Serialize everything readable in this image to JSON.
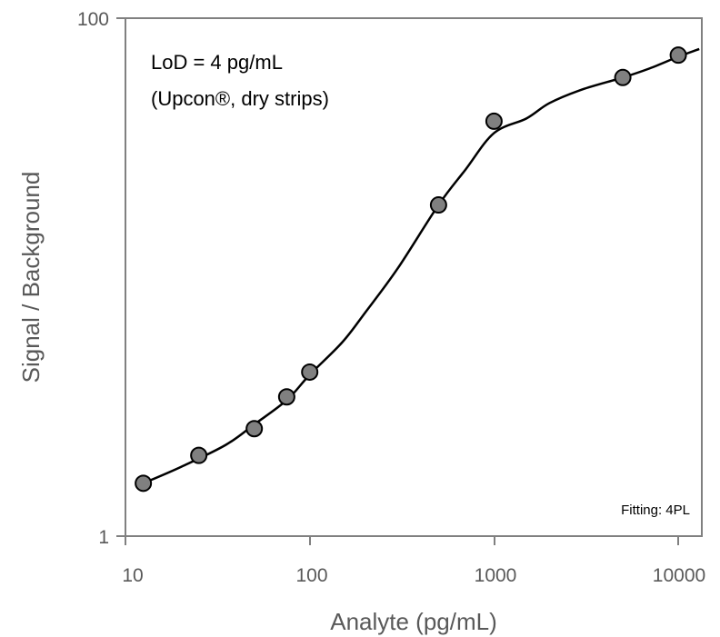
{
  "chart_data": {
    "type": "scatter",
    "xlabel": "Analyte (pg/mL)",
    "ylabel": "Signal / Background",
    "x_scale": "log",
    "y_scale": "log",
    "xlim": [
      10,
      13000
    ],
    "ylim": [
      1,
      100
    ],
    "x_ticks": [
      "10",
      "100",
      "1000",
      "10000"
    ],
    "y_ticks": [
      "1",
      "100"
    ],
    "grid": false,
    "annotations": {
      "lod_line": "LoD = 4 pg/mL",
      "method_line": "(Upcon®, dry strips)",
      "fitting": "Fitting: 4PL"
    },
    "series": [
      {
        "marker_color": "#808080",
        "points": [
          {
            "x": 12.5,
            "y": 1.6
          },
          {
            "x": 25,
            "y": 2.05
          },
          {
            "x": 50,
            "y": 2.6
          },
          {
            "x": 75,
            "y": 3.45
          },
          {
            "x": 100,
            "y": 4.3
          },
          {
            "x": 500,
            "y": 19
          },
          {
            "x": 1000,
            "y": 40
          },
          {
            "x": 5000,
            "y": 59
          },
          {
            "x": 10000,
            "y": 72
          }
        ]
      }
    ],
    "fit_curve": {
      "model": "4PL",
      "color": "#000000",
      "points": [
        {
          "x": 12.5,
          "y": 1.6
        },
        {
          "x": 20,
          "y": 1.85
        },
        {
          "x": 35,
          "y": 2.25
        },
        {
          "x": 50,
          "y": 2.7
        },
        {
          "x": 75,
          "y": 3.35
        },
        {
          "x": 100,
          "y": 4.2
        },
        {
          "x": 150,
          "y": 5.6
        },
        {
          "x": 200,
          "y": 7.3
        },
        {
          "x": 300,
          "y": 10.8
        },
        {
          "x": 500,
          "y": 19
        },
        {
          "x": 700,
          "y": 26
        },
        {
          "x": 1000,
          "y": 36
        },
        {
          "x": 1500,
          "y": 41
        },
        {
          "x": 2000,
          "y": 47
        },
        {
          "x": 3000,
          "y": 53
        },
        {
          "x": 5000,
          "y": 59
        },
        {
          "x": 7000,
          "y": 64
        },
        {
          "x": 10000,
          "y": 71
        },
        {
          "x": 13000,
          "y": 76
        }
      ]
    }
  }
}
